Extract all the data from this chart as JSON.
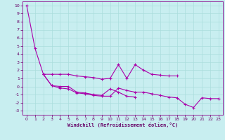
{
  "background_color": "#c8eef0",
  "grid_color": "#aadddd",
  "line_color": "#aa00aa",
  "xlabel": "Windchill (Refroidissement éolien,°C)",
  "xlim": [
    -0.5,
    23.5
  ],
  "ylim": [
    -3.5,
    10.5
  ],
  "xticks": [
    0,
    1,
    2,
    3,
    4,
    5,
    6,
    7,
    8,
    9,
    10,
    11,
    12,
    13,
    14,
    15,
    16,
    17,
    18,
    19,
    20,
    21,
    22,
    23
  ],
  "yticks": [
    -3,
    -2,
    -1,
    0,
    1,
    2,
    3,
    4,
    5,
    6,
    7,
    8,
    9,
    10
  ],
  "line1_x": [
    0,
    1,
    2,
    3,
    4,
    5,
    6,
    7,
    8,
    9,
    10,
    11,
    12,
    13,
    14,
    15,
    16,
    17,
    18
  ],
  "line1_y": [
    10.0,
    4.7,
    1.5,
    1.5,
    1.5,
    1.5,
    1.3,
    1.2,
    1.1,
    0.9,
    1.0,
    2.7,
    1.0,
    2.7,
    2.0,
    1.5,
    1.4,
    1.3,
    1.3
  ],
  "line2_x": [
    2,
    3,
    4,
    5,
    6,
    7,
    8,
    9,
    10,
    11,
    12,
    13
  ],
  "line2_y": [
    1.5,
    0.1,
    0.0,
    0.0,
    -0.7,
    -0.8,
    -1.0,
    -1.1,
    -0.3,
    -0.7,
    -1.2,
    -1.3
  ],
  "line3_x": [
    2,
    3,
    4,
    5,
    6,
    7,
    8,
    9,
    10,
    11,
    12,
    13,
    14,
    15,
    16,
    17,
    18,
    19,
    20,
    21,
    22,
    23
  ],
  "line3_y": [
    1.5,
    0.1,
    -0.2,
    -0.3,
    -0.8,
    -0.9,
    -1.1,
    -1.2,
    -1.2,
    -0.2,
    -0.5,
    -0.7,
    -0.7,
    -0.9,
    -1.1,
    -1.3,
    -1.4,
    -2.2,
    -2.6,
    -1.4,
    -1.5,
    -1.5
  ]
}
